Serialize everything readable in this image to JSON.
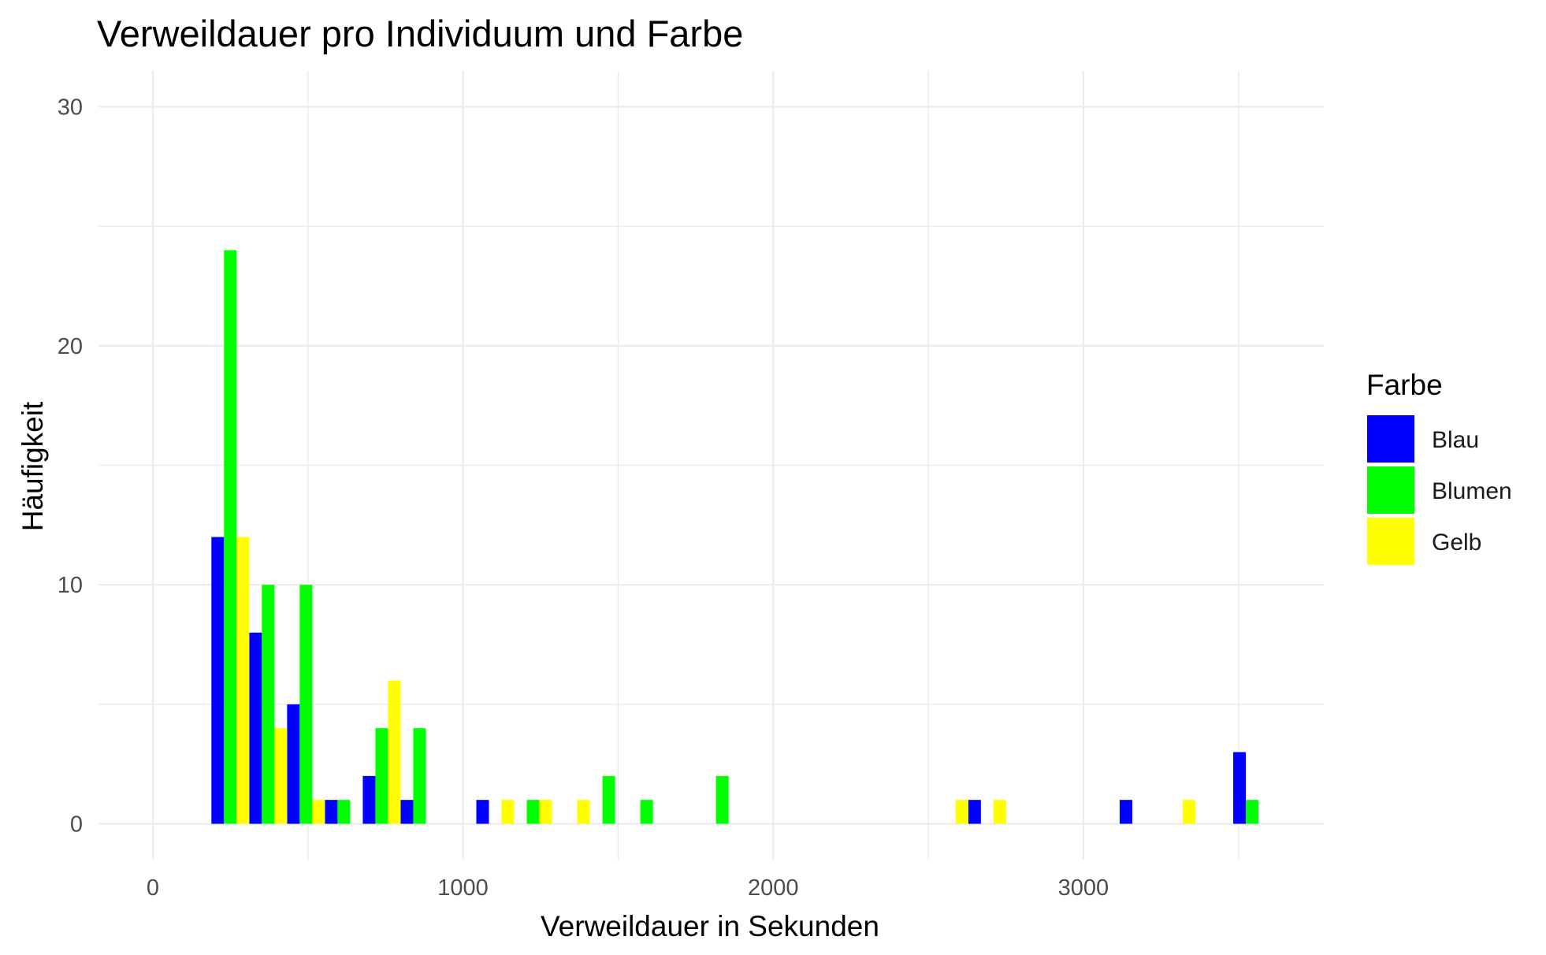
{
  "chart_data": {
    "type": "bar",
    "title": "Verweildauer pro Individuum und Farbe",
    "xlabel": "Verweildauer in Sekunden",
    "ylabel": "Häufigkeit",
    "xlim": [
      -175,
      3775
    ],
    "ylim": [
      -1.5,
      31.5
    ],
    "xticks": [
      0,
      1000,
      2000,
      3000
    ],
    "yticks": [
      0,
      10,
      20,
      30
    ],
    "grid": true,
    "bin_width": 122,
    "legend": {
      "title": "Farbe",
      "position": "right"
    },
    "series": [
      {
        "name": "Blau",
        "color": "#0000ff",
        "points": [
          [
            250,
            12
          ],
          [
            372,
            8
          ],
          [
            494,
            5
          ],
          [
            616,
            1
          ],
          [
            738,
            2
          ],
          [
            860,
            1
          ],
          [
            1104,
            1
          ],
          [
            2690,
            1
          ],
          [
            3178,
            1
          ],
          [
            3544,
            3
          ]
        ]
      },
      {
        "name": "Blumen",
        "color": "#00ff00",
        "points": [
          [
            250,
            24
          ],
          [
            372,
            10
          ],
          [
            494,
            10
          ],
          [
            616,
            1
          ],
          [
            738,
            4
          ],
          [
            860,
            4
          ],
          [
            1226,
            1
          ],
          [
            1470,
            2
          ],
          [
            1592,
            1
          ],
          [
            1836,
            2
          ],
          [
            3544,
            1
          ]
        ]
      },
      {
        "name": "Gelb",
        "color": "#ffff00",
        "points": [
          [
            250,
            12
          ],
          [
            372,
            4
          ],
          [
            494,
            1
          ],
          [
            738,
            6
          ],
          [
            1104,
            1
          ],
          [
            1226,
            1
          ],
          [
            1226,
            1
          ],
          [
            1348,
            1
          ],
          [
            2568,
            1
          ],
          [
            2690,
            1
          ],
          [
            3300,
            1
          ]
        ]
      }
    ]
  }
}
